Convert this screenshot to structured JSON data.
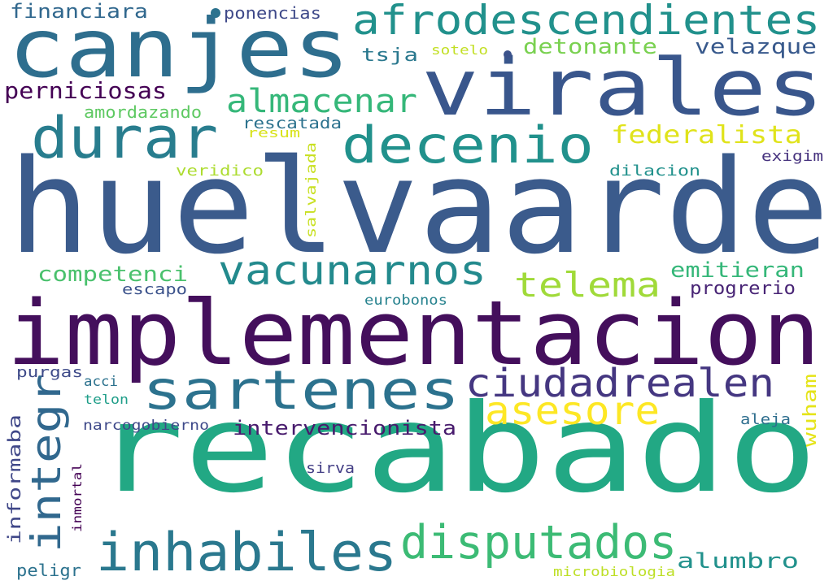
{
  "words": [
    {
      "text": "huelvaarde",
      "color": "#3b5b8c"
    },
    {
      "text": "recabado",
      "color": "#22a884"
    },
    {
      "text": "implementacion",
      "color": "#440f5c"
    },
    {
      "text": "canjes",
      "color": "#2e6e8e"
    },
    {
      "text": "virales",
      "color": "#39568c"
    },
    {
      "text": "afrodescendientes",
      "color": "#21918c"
    },
    {
      "text": "durar",
      "color": "#287d8e"
    },
    {
      "text": "decenio",
      "color": "#21918c"
    },
    {
      "text": "sartenes",
      "color": "#2c728e"
    },
    {
      "text": "ciudadrealen",
      "color": "#453781"
    },
    {
      "text": "inhabiles",
      "color": "#2a788e"
    },
    {
      "text": "vacunarnos",
      "color": "#238a8d"
    },
    {
      "text": "disputados",
      "color": "#3cbb75"
    },
    {
      "text": "asesore",
      "color": "#fde725"
    },
    {
      "text": "telema",
      "color": "#a0da39"
    },
    {
      "text": "integr",
      "color": "#31688e"
    },
    {
      "text": "almacenar",
      "color": "#35b779"
    },
    {
      "text": "federalista",
      "color": "#e0e31b"
    },
    {
      "text": "detonante",
      "color": "#7ad151"
    },
    {
      "text": "velazque",
      "color": "#38598c"
    },
    {
      "text": "perniciosas",
      "color": "#440154"
    },
    {
      "text": "financiara",
      "color": "#31688e"
    },
    {
      "text": "ponencias",
      "color": "#3e4989"
    },
    {
      "text": "tsja",
      "color": "#2a788e"
    },
    {
      "text": "sotelo",
      "color": "#c2df23"
    },
    {
      "text": "amordazando",
      "color": "#5ec962"
    },
    {
      "text": "rescatada",
      "color": "#2c728e"
    },
    {
      "text": "resum",
      "color": "#d8e219"
    },
    {
      "text": "salvajada",
      "color": "#c8e020"
    },
    {
      "text": "veridico",
      "color": "#addc30"
    },
    {
      "text": "dilacion",
      "color": "#21918c"
    },
    {
      "text": "exigim",
      "color": "#46327e"
    },
    {
      "text": "competenci",
      "color": "#4ac16d"
    },
    {
      "text": "emitieran",
      "color": "#35b779"
    },
    {
      "text": "progrerio",
      "color": "#482475"
    },
    {
      "text": "escapo",
      "color": "#3b528b"
    },
    {
      "text": "eurobonos",
      "color": "#26828e"
    },
    {
      "text": "purgas",
      "color": "#3e4a89"
    },
    {
      "text": "acci",
      "color": "#2c728e"
    },
    {
      "text": "telon",
      "color": "#1f9e89"
    },
    {
      "text": "intervencionista",
      "color": "#481b6d"
    },
    {
      "text": "narcogobierno",
      "color": "#3e4989"
    },
    {
      "text": "wuham",
      "color": "#e5e419"
    },
    {
      "text": "aleja",
      "color": "#2e6e8e"
    },
    {
      "text": "informaba",
      "color": "#3f4788"
    },
    {
      "text": "inmortal",
      "color": "#440154"
    },
    {
      "text": "sirva",
      "color": "#433e85"
    },
    {
      "text": "alumbro",
      "color": "#21918c"
    },
    {
      "text": "microbiologia",
      "color": "#bddf26"
    },
    {
      "text": "peligr",
      "color": "#2c728e"
    }
  ],
  "marks": [
    {
      "name": "dot-mark-1",
      "color": "#2c728e"
    },
    {
      "name": "dot-mark-2",
      "color": "#3b528b"
    }
  ]
}
